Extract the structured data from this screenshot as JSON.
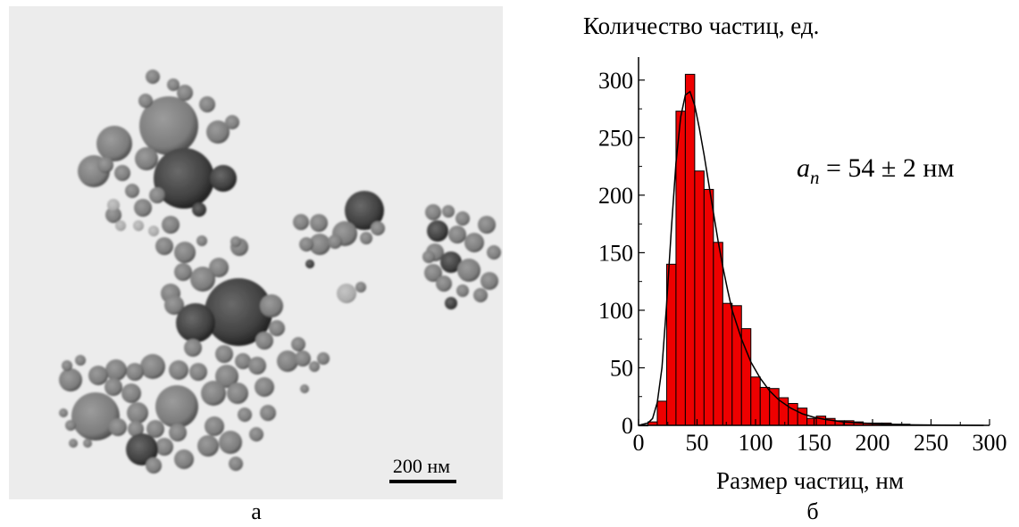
{
  "panels": {
    "left_label": "а",
    "right_label": "б"
  },
  "micrograph": {
    "scale_bar_text": "200 нм"
  },
  "chart_data": {
    "type": "bar",
    "title": "Количество частиц, ед.",
    "xlabel": "Размер частиц, нм",
    "ylabel": "Количество частиц, ед.",
    "xlim": [
      0,
      300
    ],
    "ylim": [
      0,
      320
    ],
    "x_ticks": [
      "0",
      "50",
      "100",
      "150",
      "200",
      "250",
      "300"
    ],
    "y_ticks": [
      "0",
      "50",
      "100",
      "150",
      "200",
      "250",
      "300"
    ],
    "bin_width": 8,
    "bins": [
      {
        "x0": 0,
        "x1": 8,
        "value": 0
      },
      {
        "x0": 8,
        "x1": 16,
        "value": 3
      },
      {
        "x0": 16,
        "x1": 24,
        "value": 21
      },
      {
        "x0": 24,
        "x1": 32,
        "value": 140
      },
      {
        "x0": 32,
        "x1": 40,
        "value": 273
      },
      {
        "x0": 40,
        "x1": 48,
        "value": 305
      },
      {
        "x0": 48,
        "x1": 56,
        "value": 221
      },
      {
        "x0": 56,
        "x1": 64,
        "value": 205
      },
      {
        "x0": 64,
        "x1": 72,
        "value": 159
      },
      {
        "x0": 72,
        "x1": 80,
        "value": 106
      },
      {
        "x0": 80,
        "x1": 88,
        "value": 104
      },
      {
        "x0": 88,
        "x1": 96,
        "value": 84
      },
      {
        "x0": 96,
        "x1": 104,
        "value": 42
      },
      {
        "x0": 104,
        "x1": 112,
        "value": 33
      },
      {
        "x0": 112,
        "x1": 120,
        "value": 32
      },
      {
        "x0": 120,
        "x1": 128,
        "value": 24
      },
      {
        "x0": 128,
        "x1": 136,
        "value": 19
      },
      {
        "x0": 136,
        "x1": 144,
        "value": 15
      },
      {
        "x0": 144,
        "x1": 152,
        "value": 6
      },
      {
        "x0": 152,
        "x1": 160,
        "value": 8
      },
      {
        "x0": 160,
        "x1": 168,
        "value": 6
      },
      {
        "x0": 168,
        "x1": 176,
        "value": 4
      },
      {
        "x0": 176,
        "x1": 184,
        "value": 4
      },
      {
        "x0": 184,
        "x1": 192,
        "value": 3
      },
      {
        "x0": 192,
        "x1": 200,
        "value": 2
      },
      {
        "x0": 200,
        "x1": 208,
        "value": 2
      },
      {
        "x0": 208,
        "x1": 216,
        "value": 2
      },
      {
        "x0": 216,
        "x1": 224,
        "value": 1
      },
      {
        "x0": 224,
        "x1": 232,
        "value": 1
      }
    ],
    "fit_curve": {
      "x": [
        0,
        8,
        12,
        16,
        20,
        24,
        28,
        32,
        36,
        40,
        44,
        48,
        52,
        56,
        60,
        64,
        68,
        72,
        76,
        80,
        88,
        96,
        104,
        112,
        120,
        130,
        140,
        150,
        160,
        175,
        190,
        210,
        230,
        260,
        295
      ],
      "y": [
        0,
        2,
        6,
        20,
        50,
        105,
        170,
        228,
        268,
        287,
        290,
        278,
        258,
        235,
        210,
        185,
        160,
        138,
        118,
        100,
        75,
        55,
        41,
        30,
        22,
        15,
        10,
        7,
        5,
        3,
        2,
        1,
        0.5,
        0.2,
        0
      ]
    },
    "annotation": {
      "symbol": "a",
      "subscript": "n",
      "text": " = 54 ± 2 нм"
    },
    "bar_color": "#ee0000",
    "bar_edge_color": "#000000",
    "grid": false
  }
}
